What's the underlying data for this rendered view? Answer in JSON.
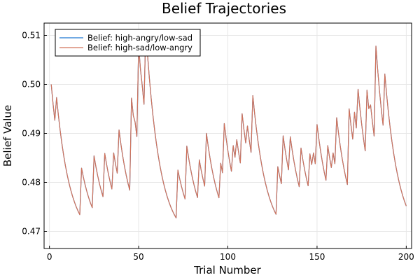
{
  "chart_data": {
    "type": "line",
    "title": "Belief Trajectories",
    "xlabel": "Trial Number",
    "ylabel": "Belief Value",
    "xlim": [
      -3,
      203
    ],
    "ylim": [
      0.4665,
      0.5125
    ],
    "xticks": [
      0,
      50,
      100,
      150,
      200
    ],
    "yticks": [
      0.47,
      0.48,
      0.49,
      0.5,
      0.51
    ],
    "xtick_labels": [
      "0",
      "50",
      "100",
      "150",
      "200"
    ],
    "ytick_labels": [
      "0.47",
      "0.48",
      "0.49",
      "0.50",
      "0.51"
    ],
    "grid": true,
    "legend_position": "top-left",
    "spikes": [
      [
        1,
        0.5
      ],
      [
        4,
        0.4973
      ],
      [
        18,
        0.4829
      ],
      [
        25,
        0.4854
      ],
      [
        31,
        0.4859
      ],
      [
        36,
        0.486
      ],
      [
        39,
        0.4907
      ],
      [
        46,
        0.4972
      ],
      [
        48,
        0.4923
      ],
      [
        50,
        0.508
      ],
      [
        52,
        0.4998
      ],
      [
        54,
        0.5112
      ],
      [
        72,
        0.4825
      ],
      [
        77,
        0.4874
      ],
      [
        84,
        0.4846
      ],
      [
        88,
        0.49
      ],
      [
        96,
        0.4839
      ],
      [
        98,
        0.492
      ],
      [
        103,
        0.4875
      ],
      [
        105,
        0.4887
      ],
      [
        108,
        0.494
      ],
      [
        111,
        0.4915
      ],
      [
        114,
        0.4977
      ],
      [
        128,
        0.4832
      ],
      [
        131,
        0.4895
      ],
      [
        135,
        0.4893
      ],
      [
        141,
        0.487
      ],
      [
        146,
        0.4858
      ],
      [
        148,
        0.486
      ],
      [
        150,
        0.4918
      ],
      [
        156,
        0.4875
      ],
      [
        159,
        0.486
      ],
      [
        161,
        0.4932
      ],
      [
        168,
        0.495
      ],
      [
        171,
        0.4943
      ],
      [
        173,
        0.499
      ],
      [
        178,
        0.4988
      ],
      [
        180,
        0.4958
      ],
      [
        183,
        0.5078
      ],
      [
        188,
        0.5021
      ]
    ],
    "decay_target": 0.468,
    "decay_rate": 0.13,
    "x_end": 200,
    "series": [
      {
        "name": "Belief: high-angry/low-sad",
        "color": "#1f77d2"
      },
      {
        "name": "Belief: high-sad/low-angry",
        "color": "#d2735a"
      }
    ]
  }
}
